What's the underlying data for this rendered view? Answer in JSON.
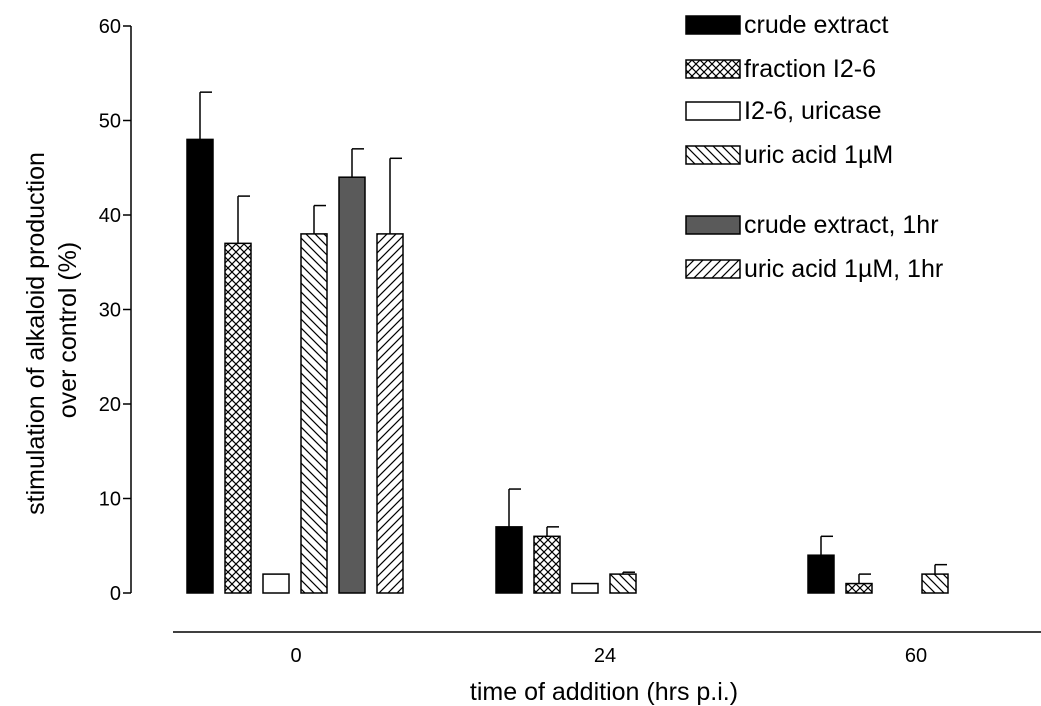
{
  "chart_data": {
    "type": "bar",
    "ylabel_line1": "stimulation of alkaloid production",
    "ylabel_line2": "over control (%)",
    "xlabel": "time of addition (hrs p.i.)",
    "ylim": [
      0,
      60
    ],
    "yticks": [
      "0",
      "10",
      "20",
      "30",
      "40",
      "50",
      "60"
    ],
    "categories": [
      "0",
      "24",
      "60"
    ],
    "legend_position": "top-right",
    "grid": false,
    "series": [
      {
        "name": "crude extract",
        "pattern": "solid-black",
        "values": [
          48,
          7,
          4
        ],
        "errors": [
          5,
          4,
          2
        ]
      },
      {
        "name": "fraction I2-6",
        "pattern": "crosshatch",
        "values": [
          37,
          6,
          1
        ],
        "errors": [
          5,
          1,
          1
        ]
      },
      {
        "name": "I2-6, uricase",
        "pattern": "white",
        "values": [
          2,
          1,
          null
        ],
        "errors": [
          0,
          0,
          null
        ]
      },
      {
        "name": "uric acid 1µM",
        "pattern": "back-diagonal",
        "values": [
          38,
          2,
          2
        ],
        "errors": [
          3,
          0.2,
          1
        ]
      },
      {
        "name": "crude extract, 1hr",
        "pattern": "solid-gray",
        "values": [
          44,
          null,
          null
        ],
        "errors": [
          3,
          null,
          null
        ]
      },
      {
        "name": "uric acid 1µM, 1hr",
        "pattern": "forward-diagonal",
        "values": [
          38,
          null,
          null
        ],
        "errors": [
          8,
          null,
          null
        ]
      }
    ],
    "colors": {
      "solid_black": "#000000",
      "solid_gray": "#5a5a5a",
      "line": "#000000"
    }
  }
}
